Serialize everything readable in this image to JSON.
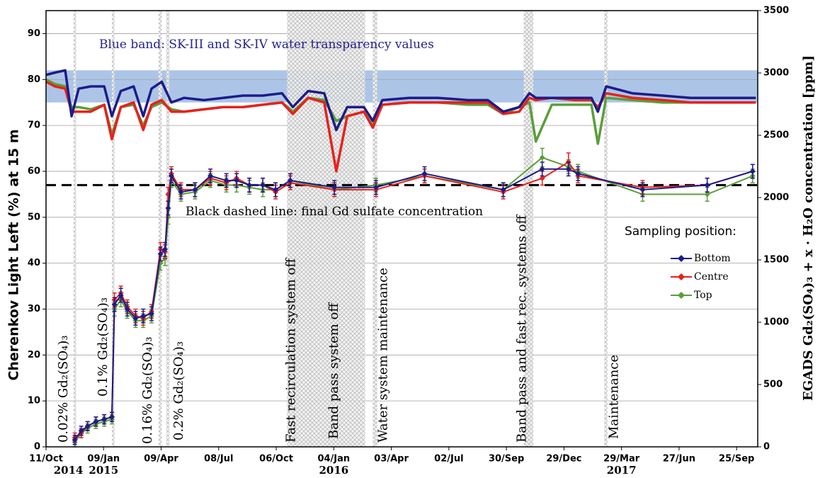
{
  "chart_data": {
    "type": "line",
    "y_label": "Cherenkov Light Left (%) at 15 m",
    "y2_label": "EGADS Gd₂(SO₄)₃ + x · H₂O concentration [ppm]",
    "xlim": [
      "2014-10-11",
      "2017-10-28"
    ],
    "xticks": [
      {
        "value": "2014-10-11",
        "label": "11/Oct"
      },
      {
        "value": "2015-01-09",
        "label": "09/Jan"
      },
      {
        "value": "2015-04-09",
        "label": "09/Apr"
      },
      {
        "value": "2015-07-08",
        "label": "08/Jul"
      },
      {
        "value": "2015-10-06",
        "label": "06/Oct"
      },
      {
        "value": "2016-01-04",
        "label": "04/Jan"
      },
      {
        "value": "2016-04-03",
        "label": "03/Apr"
      },
      {
        "value": "2016-07-02",
        "label": "02/Jul"
      },
      {
        "value": "2016-09-30",
        "label": "30/Sep"
      },
      {
        "value": "2016-12-29",
        "label": "29/Dec"
      },
      {
        "value": "2017-03-29",
        "label": "29/Mar"
      },
      {
        "value": "2017-06-27",
        "label": "27/Jun"
      },
      {
        "value": "2017-09-25",
        "label": "25/Sep"
      }
    ],
    "x_year_labels": [
      {
        "value": "2014-11-15",
        "label": "2014"
      },
      {
        "value": "2015-01-09",
        "label": "2015"
      },
      {
        "value": "2016-01-04",
        "label": "2016"
      },
      {
        "value": "2017-03-29",
        "label": "2017"
      }
    ],
    "ylim": [
      0,
      95
    ],
    "yticks": [
      0,
      10,
      20,
      30,
      40,
      50,
      60,
      70,
      80,
      90
    ],
    "y2lim": [
      0,
      3500
    ],
    "y2ticks": [
      0,
      500,
      1000,
      1500,
      2000,
      2500,
      3000,
      3500
    ],
    "grid": true,
    "legend": "right",
    "legend_title": "Sampling position:",
    "band": {
      "range": [
        75,
        82
      ],
      "color": "#9dbbe3",
      "label": "Blue band: SK-III and SK-IV water transparency values"
    },
    "final_concentration": {
      "value": 2100,
      "axis": "y2",
      "label": "Black dashed line: final Gd sulfate concentration"
    },
    "events": [
      {
        "start": "2014-11-23",
        "end": "2014-11-27",
        "label": "0.02% Gd₂(SO₄)₃"
      },
      {
        "start": "2015-01-22",
        "end": "2015-01-26",
        "label": "0.1% Gd₂(SO₄)₃"
      },
      {
        "start": "2015-04-05",
        "end": "2015-04-10",
        "label": "0.16% Gd₂(SO₄)₃"
      },
      {
        "start": "2015-04-17",
        "end": "2015-04-22",
        "label": "0.2% Gd₂(SO₄)₃"
      },
      {
        "start": "2015-10-23",
        "end": "2015-11-30",
        "label": "Fast recirculation  system off"
      },
      {
        "start": "2015-11-27",
        "end": "2016-02-22",
        "label": "Band pass system off"
      },
      {
        "start": "2016-03-05",
        "end": "2016-03-12",
        "label": "Water system maintenance"
      },
      {
        "start": "2016-10-27",
        "end": "2016-11-11",
        "label": "Band pass and fast rec. systems off"
      },
      {
        "start": "2017-03-02",
        "end": "2017-03-07",
        "label": "Maintenance"
      }
    ],
    "continuous_x": [
      "2014-10-11",
      "2014-10-25",
      "2014-11-10",
      "2014-11-20",
      "2014-12-01",
      "2014-12-20",
      "2015-01-10",
      "2015-01-22",
      "2015-02-05",
      "2015-02-25",
      "2015-03-12",
      "2015-03-25",
      "2015-04-10",
      "2015-04-25",
      "2015-05-15",
      "2015-06-15",
      "2015-07-15",
      "2015-08-15",
      "2015-09-15",
      "2015-10-15",
      "2015-11-01",
      "2015-11-25",
      "2015-12-20",
      "2016-01-08",
      "2016-01-25",
      "2016-02-20",
      "2016-03-05",
      "2016-03-20",
      "2016-05-01",
      "2016-06-15",
      "2016-08-01",
      "2016-09-01",
      "2016-09-25",
      "2016-10-20",
      "2016-11-05",
      "2016-11-15",
      "2016-12-10",
      "2017-01-15",
      "2017-02-10",
      "2017-02-20",
      "2017-03-05",
      "2017-04-15",
      "2017-06-01",
      "2017-07-15",
      "2017-09-01",
      "2017-10-25"
    ],
    "continuous": [
      {
        "color": "#1c1c8a",
        "values": [
          81,
          81.5,
          82,
          72,
          78,
          78.5,
          78.5,
          72,
          77.5,
          78.5,
          72,
          78,
          79.5,
          75,
          76,
          75.5,
          76,
          76.5,
          76.5,
          77,
          74,
          77.5,
          77,
          69,
          74,
          74,
          71,
          75.5,
          76,
          76,
          75.5,
          75.5,
          73,
          74,
          77,
          76,
          76,
          76,
          76,
          73,
          78.5,
          77,
          76.5,
          76,
          76,
          76
        ]
      },
      {
        "color": "#e8211b",
        "values": [
          79.5,
          78.5,
          78,
          73,
          73,
          73,
          74.5,
          67,
          74,
          75,
          69,
          74.5,
          75.5,
          73,
          73,
          73.5,
          74,
          74,
          74.5,
          75,
          72.5,
          76,
          75,
          60,
          72,
          73,
          69.5,
          74.5,
          75,
          75,
          75,
          75,
          72.5,
          73,
          76,
          75.5,
          76,
          75.5,
          75.5,
          74,
          77,
          76,
          75.5,
          75,
          75,
          75
        ]
      },
      {
        "color": "#5a9e3a",
        "values": [
          80,
          79,
          78.5,
          74,
          74,
          73.5,
          74.5,
          68,
          74,
          74.5,
          70,
          74,
          75,
          73.5,
          73,
          73.5,
          74,
          74,
          74.5,
          75,
          73,
          76,
          75.5,
          71,
          72,
          73,
          70,
          74.5,
          75,
          75,
          74.5,
          74.5,
          72.5,
          74,
          75,
          66.5,
          74.5,
          74.5,
          74.5,
          66,
          76,
          75.5,
          75,
          75,
          75,
          75
        ]
      }
    ],
    "x": [
      "2014-11-25",
      "2014-12-05",
      "2014-12-15",
      "2014-12-28",
      "2015-01-10",
      "2015-01-22",
      "2015-01-26",
      "2015-02-05",
      "2015-02-15",
      "2015-02-28",
      "2015-03-12",
      "2015-03-25",
      "2015-04-08",
      "2015-04-15",
      "2015-04-20",
      "2015-04-25",
      "2015-05-10",
      "2015-06-01",
      "2015-06-25",
      "2015-07-20",
      "2015-08-05",
      "2015-08-25",
      "2015-09-15",
      "2015-10-05",
      "2015-10-28",
      "2016-01-05",
      "2016-03-10",
      "2016-05-25",
      "2016-09-25",
      "2016-11-25",
      "2017-01-05",
      "2017-01-20",
      "2017-05-01",
      "2017-08-10",
      "2017-10-20"
    ],
    "series": [
      {
        "name": "Bottom",
        "color": "#1c1c8a",
        "values": [
          1.5,
          3.5,
          4.5,
          5.5,
          6,
          6.5,
          31,
          33,
          30,
          28,
          28.5,
          29,
          42,
          43,
          52,
          59,
          55.5,
          56,
          59,
          58,
          58,
          57,
          57,
          56,
          58,
          56.5,
          56.5,
          59.5,
          56,
          60.5,
          60.5,
          59.5,
          56,
          57,
          60
        ],
        "errors": [
          1,
          1,
          1,
          1,
          1,
          1,
          1.5,
          1.5,
          1.5,
          1.5,
          1.5,
          1.5,
          1.5,
          1.5,
          1.5,
          1.5,
          1.5,
          1.5,
          1.5,
          1.5,
          1.5,
          1.5,
          1.5,
          1.5,
          1.5,
          1.5,
          1.5,
          1.5,
          1.5,
          1.5,
          1.5,
          1.5,
          1.5,
          1.5,
          1.5
        ]
      },
      {
        "name": "Centre",
        "color": "#e8211b",
        "values": [
          2,
          3,
          4.5,
          5.5,
          6,
          6.5,
          32,
          33.5,
          30.5,
          28.5,
          28,
          29.5,
          43,
          42.5,
          55,
          59.5,
          56,
          56,
          58.5,
          57.5,
          58.5,
          57,
          57,
          55.5,
          57.5,
          56,
          56,
          59,
          55.5,
          58.5,
          62,
          59,
          56.5,
          57,
          60
        ],
        "errors": [
          1,
          1,
          1,
          1,
          1,
          1,
          1.5,
          1.5,
          1.5,
          1.5,
          1.5,
          1.5,
          1.5,
          1.5,
          1.5,
          1.5,
          1.5,
          1.5,
          1.5,
          1.5,
          1.5,
          1.5,
          1.5,
          1.5,
          1.5,
          1.5,
          1.5,
          1.5,
          1.5,
          1.5,
          2,
          1.5,
          1.5,
          1.5,
          1.5
        ]
      },
      {
        "name": "Top",
        "color": "#5a9e3a",
        "values": [
          1,
          3,
          4,
          5,
          5.5,
          6,
          30,
          32,
          29.5,
          27.5,
          27.5,
          28.5,
          40,
          41,
          50,
          58,
          55,
          55.5,
          58,
          57,
          57,
          56.5,
          56,
          56,
          58,
          56,
          57,
          59,
          56,
          63,
          61,
          60,
          55,
          55,
          59
        ],
        "errors": [
          1,
          1,
          1,
          1,
          1,
          1,
          1.5,
          1.5,
          1.5,
          1.5,
          1.5,
          1.5,
          1.5,
          1.5,
          1.5,
          1.5,
          1.5,
          1.5,
          1.5,
          1.5,
          1.5,
          1.5,
          1.5,
          1.5,
          1.5,
          1.5,
          1.5,
          1.5,
          1.5,
          2,
          1.5,
          1.5,
          1.5,
          1.5,
          1.5
        ]
      }
    ]
  }
}
